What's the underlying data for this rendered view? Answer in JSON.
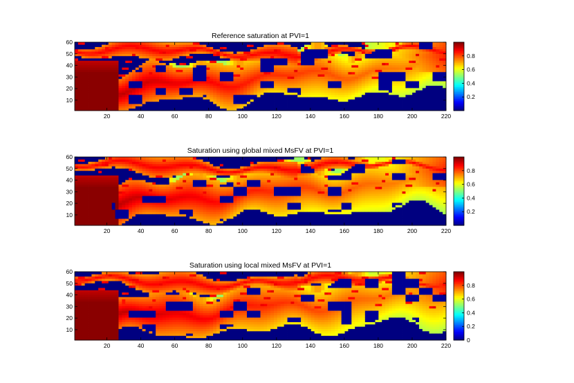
{
  "chart_data": [
    {
      "type": "heatmap",
      "title": "Reference saturation at PVI=1",
      "xlabel": "",
      "ylabel": "",
      "xlim": [
        1,
        220
      ],
      "ylim": [
        1,
        60
      ],
      "x_ticks": [
        20,
        40,
        60,
        80,
        100,
        120,
        140,
        160,
        180,
        200,
        220
      ],
      "y_ticks": [
        10,
        20,
        30,
        40,
        50,
        60
      ],
      "colorbar": {
        "ticks": [
          0.2,
          0.4,
          0.6,
          0.8
        ],
        "range": [
          0,
          1
        ],
        "colormap": "jet"
      },
      "field": {
        "channel_width": 1.0,
        "channel_wobble": 1.0,
        "thin_fingers": 0.55,
        "yellow_band": 1.0
      },
      "grid": false
    },
    {
      "type": "heatmap",
      "title": "Saturation using global mixed MsFV at PVI=1",
      "xlabel": "",
      "ylabel": "",
      "xlim": [
        1,
        220
      ],
      "ylim": [
        1,
        60
      ],
      "x_ticks": [
        20,
        40,
        60,
        80,
        100,
        120,
        140,
        160,
        180,
        200,
        220
      ],
      "y_ticks": [
        10,
        20,
        30,
        40,
        50,
        60
      ],
      "colorbar": {
        "ticks": [
          0.2,
          0.4,
          0.6,
          0.8
        ],
        "range": [
          0,
          1
        ],
        "colormap": "jet"
      },
      "field": {
        "channel_width": 1.05,
        "channel_wobble": 0.85,
        "thin_fingers": 0.4,
        "yellow_band": 1.3
      },
      "grid": false
    },
    {
      "type": "heatmap",
      "title": "Saturation using local mixed MsFV at PVI=1",
      "xlabel": "",
      "ylabel": "",
      "xlim": [
        1,
        220
      ],
      "ylim": [
        1,
        60
      ],
      "x_ticks": [
        20,
        40,
        60,
        80,
        100,
        120,
        140,
        160,
        180,
        200,
        220
      ],
      "y_ticks": [
        10,
        20,
        30,
        40,
        50,
        60
      ],
      "colorbar": {
        "ticks": [
          0,
          0.2,
          0.4,
          0.6,
          0.8
        ],
        "range": [
          0,
          1
        ],
        "colormap": "jet"
      },
      "field": {
        "channel_width": 1.1,
        "channel_wobble": 1.15,
        "thin_fingers": 0.6,
        "yellow_band": 1.1
      },
      "grid": false
    }
  ]
}
